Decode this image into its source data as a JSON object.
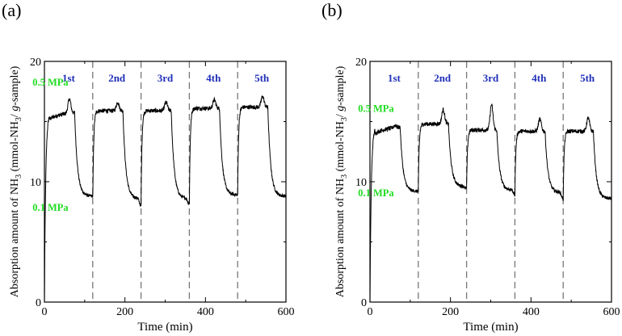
{
  "colors": {
    "cycle_label": "#1f2fb8",
    "pressure_label": "#22dd22",
    "line": "#000000",
    "divider": "#777777"
  },
  "chart_data": [
    {
      "type": "line",
      "panel_label": "(a)",
      "xlabel": "Time (min)",
      "ylabel_parts": {
        "prefix": "Absorption amount of NH",
        "sub1": "3",
        "mid": " (mmol-NH",
        "sub2": "3",
        "slash": "/ ",
        "italic": "g",
        "suffix": "-sample)"
      },
      "xlim": [
        0,
        600
      ],
      "ylim": [
        0,
        20
      ],
      "xticks": [
        0,
        200,
        400,
        600
      ],
      "yticks": [
        0,
        10,
        20
      ],
      "cycle_boundaries": [
        120,
        240,
        360,
        480
      ],
      "cycle_labels": [
        {
          "text": "1st",
          "x": 60
        },
        {
          "text": "2nd",
          "x": 180
        },
        {
          "text": "3rd",
          "x": 300
        },
        {
          "text": "4th",
          "x": 420
        },
        {
          "text": "5th",
          "x": 540
        }
      ],
      "pressure_labels": [
        {
          "text": "0.5 MPa",
          "x": 15,
          "y": 18.0
        },
        {
          "text": "0.1 MPa",
          "x": 15,
          "y": 7.6
        }
      ],
      "cycles": [
        {
          "t0": 0,
          "high": 15.8,
          "low": 8.8,
          "startFromZero": true,
          "peak": 17.0
        },
        {
          "t0": 120,
          "high": 15.9,
          "low": 8.6,
          "dip": 7.8,
          "peak": 16.6
        },
        {
          "t0": 240,
          "high": 15.9,
          "low": 8.6,
          "dip": 7.9,
          "peak": 16.6
        },
        {
          "t0": 360,
          "high": 16.1,
          "low": 8.9,
          "dip": 8.1,
          "peak": 16.8
        },
        {
          "t0": 480,
          "high": 16.2,
          "low": 8.8,
          "dip": 8.9,
          "peak": 17.1
        }
      ]
    },
    {
      "type": "line",
      "panel_label": "(b)",
      "xlabel": "Time (min)",
      "ylabel_parts": {
        "prefix": "Absorption amount of NH",
        "sub1": "3",
        "mid": " (mmol-NH",
        "sub2": "3",
        "slash": "/ ",
        "italic": "g",
        "suffix": "-sample)"
      },
      "xlim": [
        0,
        600
      ],
      "ylim": [
        0,
        20
      ],
      "xticks": [
        0,
        200,
        400,
        600
      ],
      "yticks": [
        0,
        10,
        20
      ],
      "cycle_boundaries": [
        120,
        240,
        360,
        480
      ],
      "cycle_labels": [
        {
          "text": "1st",
          "x": 60
        },
        {
          "text": "2nd",
          "x": 180
        },
        {
          "text": "3rd",
          "x": 300
        },
        {
          "text": "4th",
          "x": 420
        },
        {
          "text": "5th",
          "x": 540
        }
      ],
      "pressure_labels": [
        {
          "text": "0.5 MPa",
          "x": 15,
          "y": 15.8
        },
        {
          "text": "0.1 MPa",
          "x": 15,
          "y": 8.8
        }
      ],
      "cycles": [
        {
          "t0": 0,
          "high": 14.6,
          "low": 9.2,
          "startFromZero": true,
          "peak": 14.8
        },
        {
          "t0": 120,
          "high": 14.8,
          "low": 9.6,
          "dip": 9.2,
          "peak": 16.0
        },
        {
          "t0": 240,
          "high": 14.3,
          "low": 9.3,
          "dip": 9.4,
          "peak": 16.4
        },
        {
          "t0": 360,
          "high": 14.2,
          "low": 9.1,
          "dip": 8.9,
          "peak": 15.2
        },
        {
          "t0": 480,
          "high": 14.2,
          "low": 8.6,
          "dip": 8.5,
          "peak": 15.3
        }
      ]
    }
  ]
}
